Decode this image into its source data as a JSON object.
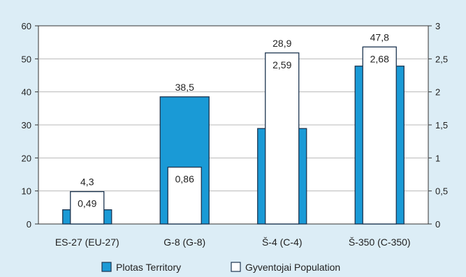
{
  "chart_data": {
    "type": "bar",
    "categories": [
      "ES-27 (EU-27)",
      "G-8 (G-8)",
      "Š-4 (C-4)",
      "Š-350 (C-350)"
    ],
    "series": [
      {
        "name": "Plotas Territory",
        "axis": "left",
        "values": [
          4.3,
          38.5,
          28.9,
          47.8
        ],
        "value_labels": [
          "4,3",
          "38,5",
          "28,9",
          "47,8"
        ],
        "color": "#1a9ad6"
      },
      {
        "name": "Gyventojai Population",
        "axis": "right",
        "values": [
          0.49,
          0.86,
          2.59,
          2.68
        ],
        "value_labels": [
          "0,49",
          "0,86",
          "2,59",
          "2,68"
        ],
        "color": "#ffffff"
      }
    ],
    "y_left": {
      "lim": [
        0,
        60
      ],
      "ticks": [
        "0",
        "10",
        "20",
        "30",
        "40",
        "50",
        "60"
      ]
    },
    "y_right": {
      "lim": [
        0,
        3
      ],
      "ticks": [
        "0",
        "0,5",
        "1",
        "1,5",
        "2",
        "2,5",
        "3"
      ]
    },
    "grid": "horizontal",
    "legend": "bottom"
  }
}
